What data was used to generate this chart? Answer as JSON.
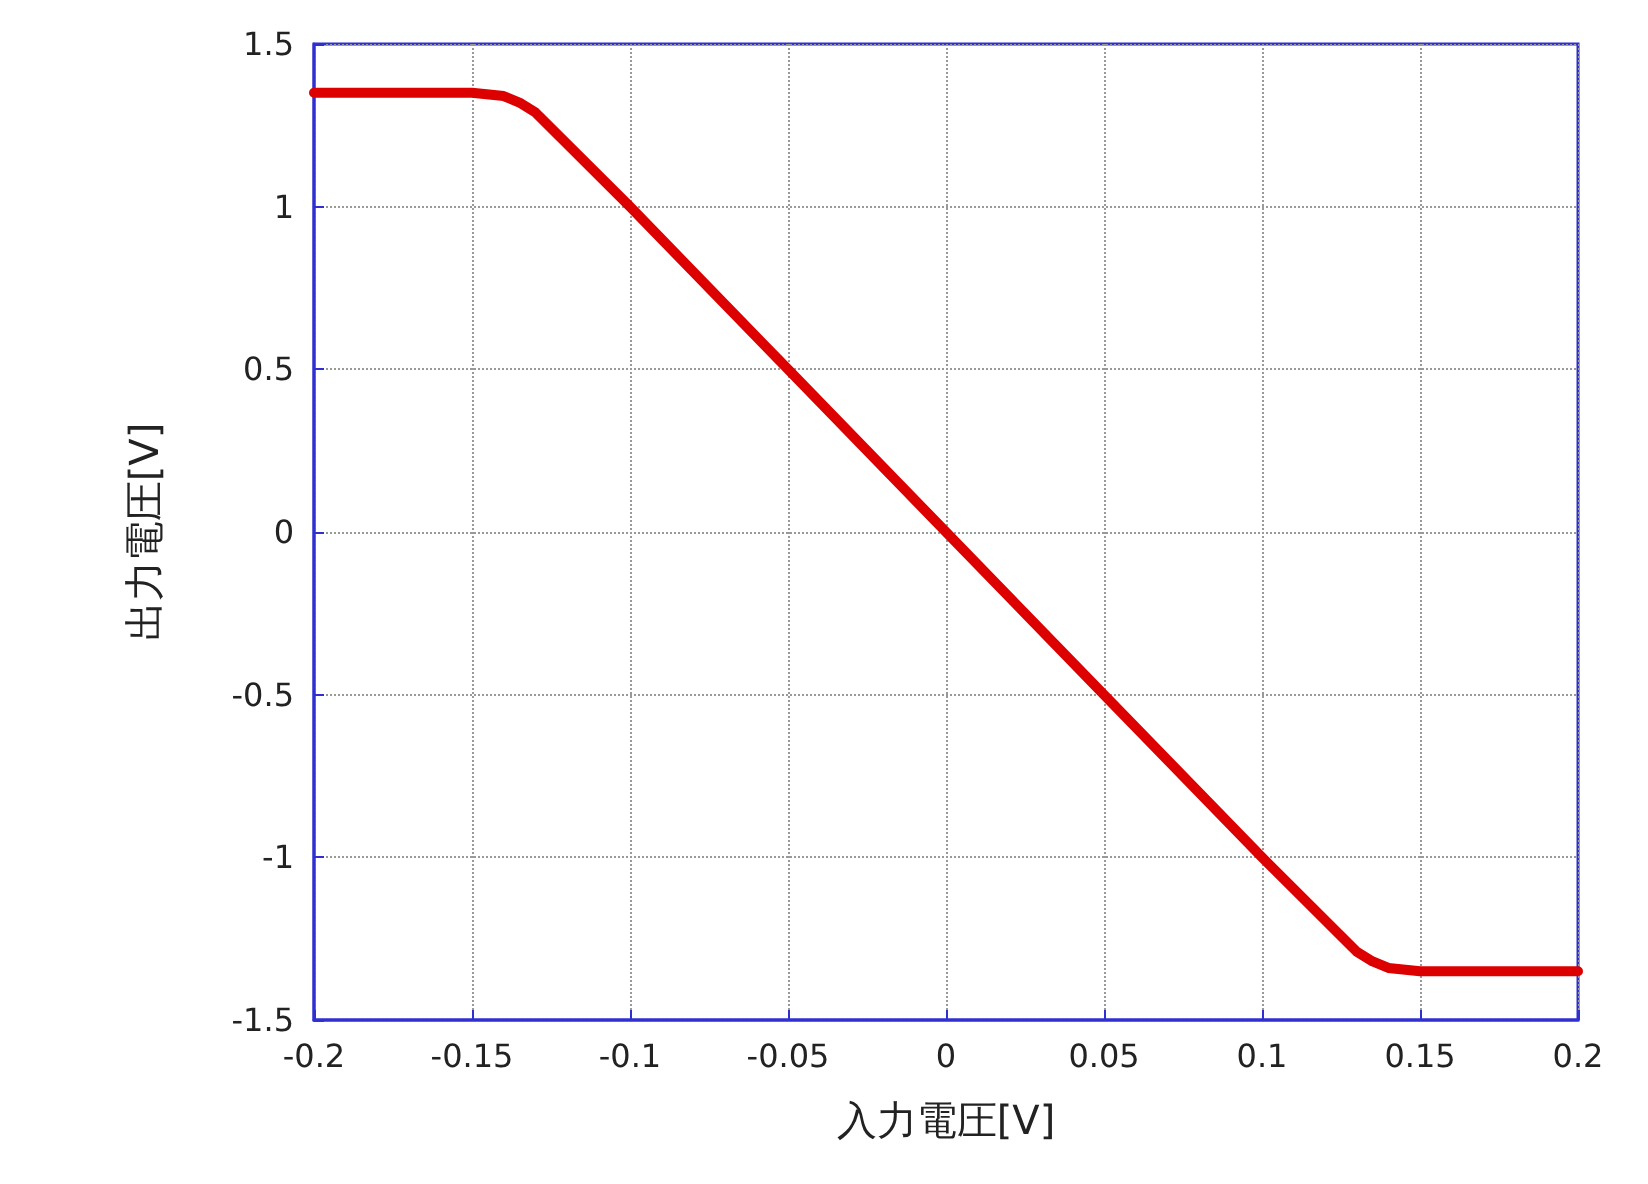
{
  "chart_data": {
    "type": "line",
    "xlabel": "入力電圧[V]",
    "ylabel": "出力電圧[V]",
    "x": [
      -0.2,
      -0.15,
      -0.14,
      -0.135,
      -0.13,
      -0.1,
      -0.05,
      0,
      0.05,
      0.1,
      0.13,
      0.135,
      0.14,
      0.15,
      0.2
    ],
    "series": [
      {
        "color": "#dd0000",
        "values": [
          1.35,
          1.35,
          1.34,
          1.32,
          1.29,
          1.0,
          0.5,
          0,
          -0.5,
          -1.0,
          -1.29,
          -1.32,
          -1.34,
          -1.35,
          -1.35
        ]
      }
    ],
    "xlim": [
      -0.2,
      0.2
    ],
    "xticks": [
      -0.2,
      -0.15,
      -0.1,
      -0.05,
      0,
      0.05,
      0.1,
      0.15,
      0.2
    ],
    "ylim": [
      -1.5,
      1.5
    ],
    "yticks": [
      -1.5,
      -1,
      -0.5,
      0,
      0.5,
      1,
      1.5
    ],
    "grid": true,
    "marker": "none",
    "line_style": "solid"
  }
}
